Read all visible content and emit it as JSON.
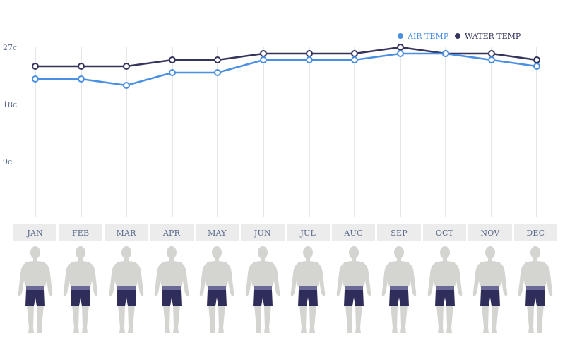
{
  "chart_data": {
    "type": "line",
    "categories": [
      "JAN",
      "FEB",
      "MAR",
      "APR",
      "MAY",
      "JUN",
      "JUL",
      "AUG",
      "SEP",
      "OCT",
      "NOV",
      "DEC"
    ],
    "series": [
      {
        "name": "AIR TEMP",
        "color": "#4a90e2",
        "values": [
          22,
          22,
          21,
          23,
          23,
          25,
          25,
          25,
          26,
          26,
          25,
          24
        ]
      },
      {
        "name": "WATER TEMP",
        "color": "#35345c",
        "values": [
          24,
          24,
          24,
          25,
          25,
          26,
          26,
          26,
          27,
          26,
          26,
          25
        ]
      }
    ],
    "y_ticks": [
      "27c",
      "18c",
      "9c"
    ],
    "y_tick_values": [
      27,
      18,
      9
    ],
    "ylim": [
      0,
      27
    ],
    "legend_position": "top-right",
    "grid": "vertical"
  },
  "figure_icon": "person-in-swim-shorts",
  "colors": {
    "skin": "#d4d4d0",
    "shorts": "#2f2e5a",
    "waistband": "#6b6a96"
  }
}
